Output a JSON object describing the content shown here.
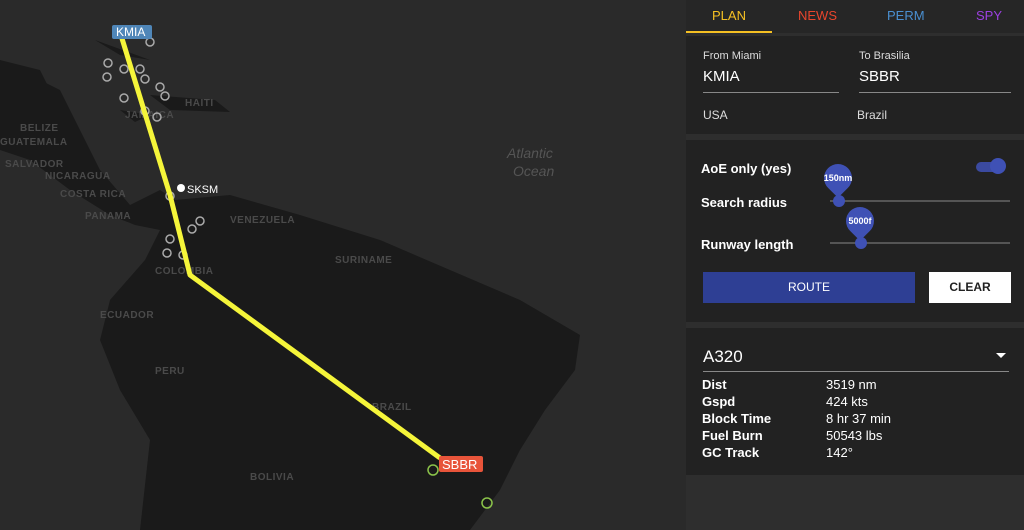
{
  "map": {
    "labels": [
      "BELIZE",
      "GUATEMALA",
      "SALVADOR",
      "NICARAGUA",
      "COSTA RICA",
      "PANAMA",
      "HAITI",
      "JAMAICA",
      "VENEZUELA",
      "COLOMBIA",
      "SURINAME",
      "ECUADOR",
      "PERU",
      "BRAZIL",
      "BOLIVIA",
      "Atlantic",
      "Ocean"
    ],
    "airports": {
      "origin": "KMIA",
      "waypoint": "SKSM",
      "destination": "SBBR"
    }
  },
  "tabs": [
    "PLAN",
    "NEWS",
    "PERM",
    "SPY"
  ],
  "plan": {
    "from_label": "From Miami",
    "from_value": "KMIA",
    "to_label": "To Brasilia",
    "to_value": "SBBR",
    "from_country": "USA",
    "to_country": "Brazil"
  },
  "options": {
    "aoe_label": "AoE only (yes)",
    "search_radius_label": "Search radius",
    "search_radius_value": "150nm",
    "runway_length_label": "Runway length",
    "runway_length_value": "5000f",
    "route_button": "ROUTE",
    "clear_button": "CLEAR"
  },
  "aircraft": {
    "name": "A320",
    "stats": [
      {
        "label": "Dist",
        "value": "3519 nm"
      },
      {
        "label": "Gspd",
        "value": "424 kts"
      },
      {
        "label": "Block Time",
        "value": "8 hr 37 min"
      },
      {
        "label": "Fuel Burn",
        "value": "50543 lbs"
      },
      {
        "label": "GC Track",
        "value": "142°"
      }
    ]
  }
}
